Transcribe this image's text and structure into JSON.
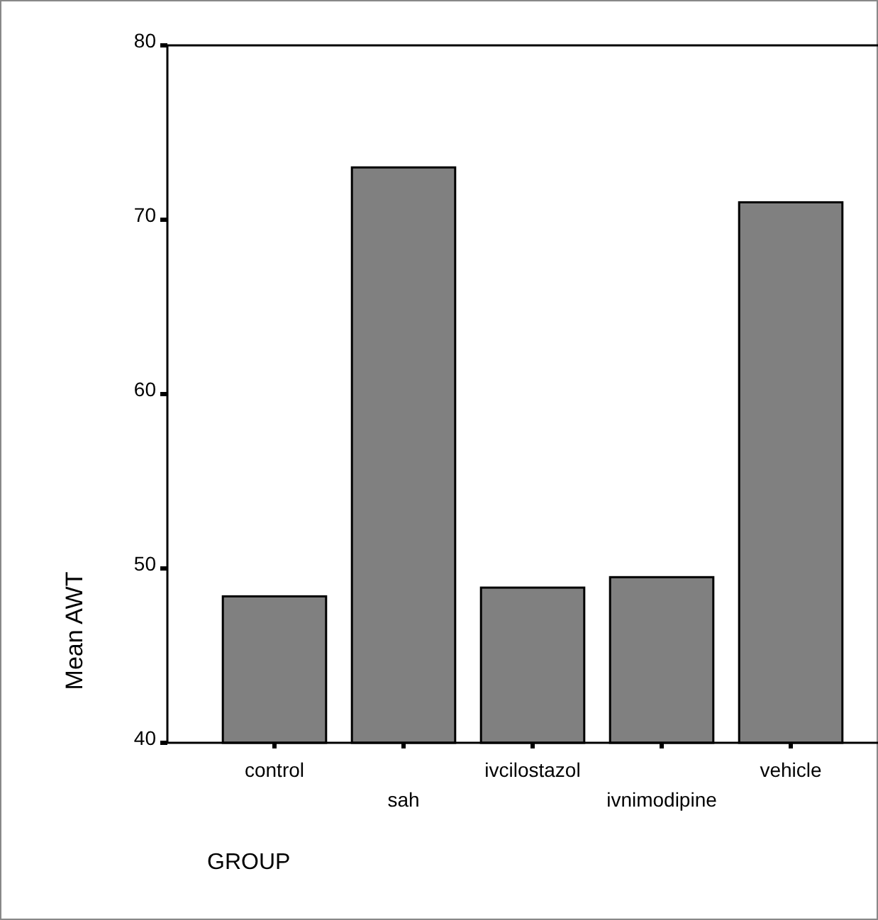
{
  "chart_data": {
    "type": "bar",
    "xlabel": "GROUP",
    "ylabel": "Mean AWT",
    "categories": [
      "control",
      "sah",
      "ivcilostazol",
      "ivnimodipine",
      "vehicle"
    ],
    "values": [
      48.4,
      73.0,
      48.9,
      49.5,
      71.0
    ],
    "color": "#808080",
    "ylim": [
      40,
      80
    ],
    "yticks": [
      40,
      50,
      60,
      70,
      80
    ],
    "grid": false
  }
}
